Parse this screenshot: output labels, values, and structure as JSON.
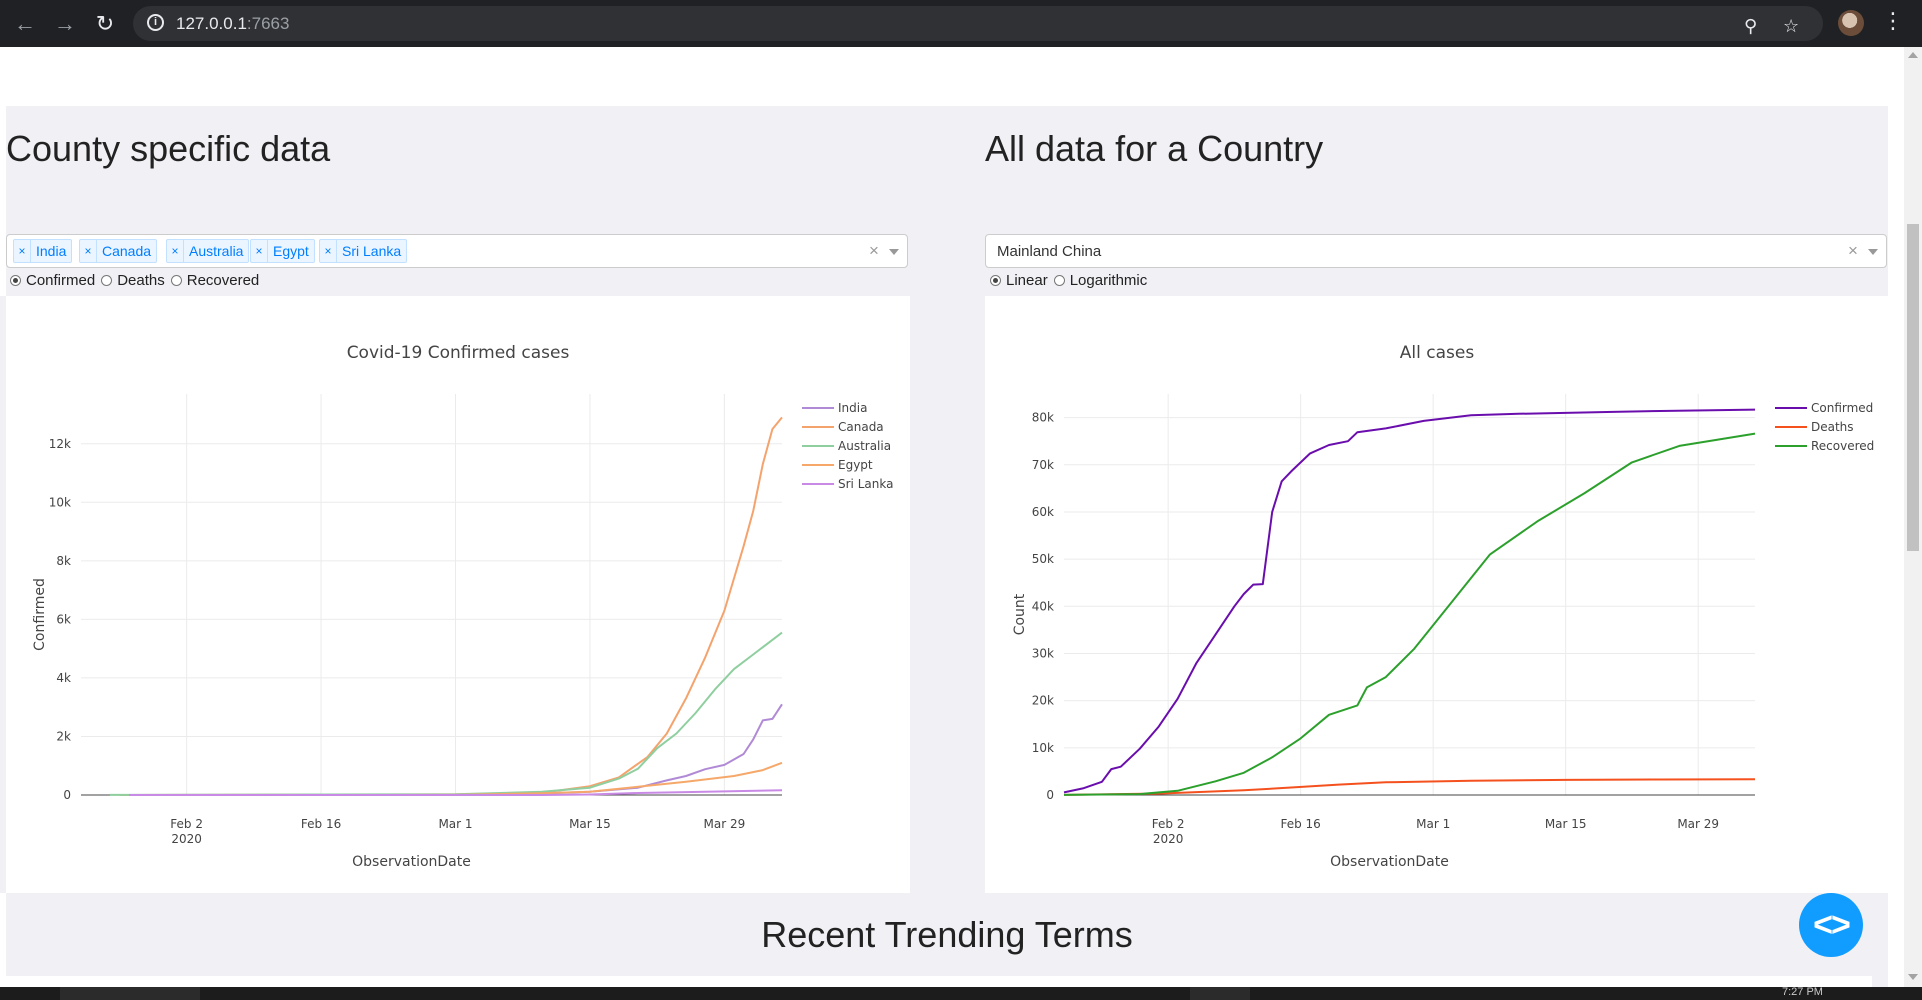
{
  "browser": {
    "url_host": "127.0.0.1",
    "url_port": ":7663",
    "icons": [
      "back-icon",
      "forward-icon",
      "reload-icon",
      "info-icon",
      "zoom-icon",
      "star-icon",
      "avatar",
      "menu-icon"
    ]
  },
  "left_section": {
    "title": "County specific data",
    "selected_countries": [
      "India",
      "Canada",
      "Australia",
      "Egypt",
      "Sri Lanka"
    ],
    "tag_remove_symbol": "×",
    "clear_symbol": "×",
    "radio_options": [
      "Confirmed",
      "Deaths",
      "Recovered"
    ],
    "radio_selected": "Confirmed"
  },
  "right_section": {
    "title": "All data for a Country",
    "selected_country": "Mainland China",
    "clear_symbol": "×",
    "radio_options": [
      "Linear",
      "Logarithmic"
    ],
    "radio_selected": "Linear"
  },
  "bottom": {
    "title": "Recent Trending Terms",
    "fab_symbol": "<>"
  },
  "taskbar": {
    "clock": "7:27 PM"
  },
  "colors": {
    "india": "#b18ad6",
    "canada": "#f4a36d",
    "australia": "#8fcf9f",
    "egypt": "#f5a86a",
    "sri_lanka": "#c98ae6",
    "confirmed": "#6a0dad",
    "deaths": "#f4511e",
    "recovered": "#2ca02c",
    "accent": "#119dff"
  },
  "chart_data": [
    {
      "type": "line",
      "title": "Covid-19 Confirmed cases",
      "xlabel": "ObservationDate",
      "ylabel": "Confirmed",
      "xlim": [
        "2020-01-22",
        "2020-04-04"
      ],
      "ylim": [
        0,
        13700
      ],
      "x_ticks": [
        {
          "date": "2020-02-02",
          "label": "Feb 2",
          "sub": "2020"
        },
        {
          "date": "2020-02-16",
          "label": "Feb 16",
          "sub": ""
        },
        {
          "date": "2020-03-01",
          "label": "Mar 1",
          "sub": ""
        },
        {
          "date": "2020-03-15",
          "label": "Mar 15",
          "sub": ""
        },
        {
          "date": "2020-03-29",
          "label": "Mar 29",
          "sub": ""
        }
      ],
      "y_ticks": [
        0,
        2000,
        4000,
        6000,
        8000,
        10000,
        12000
      ],
      "y_tick_labels": [
        "0",
        "2k",
        "4k",
        "6k",
        "8k",
        "10k",
        "12k"
      ],
      "grid": true,
      "legend": "top-right",
      "series": [
        {
          "name": "India",
          "color": "#b18ad6",
          "x": [
            "2020-01-30",
            "2020-03-01",
            "2020-03-05",
            "2020-03-10",
            "2020-03-15",
            "2020-03-20",
            "2020-03-23",
            "2020-03-25",
            "2020-03-27",
            "2020-03-29",
            "2020-03-31",
            "2020-04-01",
            "2020-04-02",
            "2020-04-03",
            "2020-04-04"
          ],
          "y": [
            1,
            3,
            30,
            50,
            110,
            250,
            500,
            650,
            880,
            1030,
            1400,
            1900,
            2550,
            2600,
            3100
          ]
        },
        {
          "name": "Canada",
          "color": "#f4a36d",
          "x": [
            "2020-01-26",
            "2020-03-01",
            "2020-03-10",
            "2020-03-15",
            "2020-03-18",
            "2020-03-21",
            "2020-03-23",
            "2020-03-25",
            "2020-03-27",
            "2020-03-29",
            "2020-03-31",
            "2020-04-01",
            "2020-04-02",
            "2020-04-03",
            "2020-04-04"
          ],
          "y": [
            1,
            20,
            80,
            300,
            600,
            1300,
            2100,
            3300,
            4700,
            6300,
            8500,
            9700,
            11300,
            12500,
            12900
          ]
        },
        {
          "name": "Australia",
          "color": "#8fcf9f",
          "x": [
            "2020-01-25",
            "2020-03-01",
            "2020-03-10",
            "2020-03-15",
            "2020-03-18",
            "2020-03-20",
            "2020-03-22",
            "2020-03-24",
            "2020-03-26",
            "2020-03-28",
            "2020-03-30",
            "2020-04-01",
            "2020-04-04"
          ],
          "y": [
            4,
            27,
            110,
            250,
            560,
            900,
            1600,
            2100,
            2800,
            3600,
            4300,
            4800,
            5550
          ]
        },
        {
          "name": "Egypt",
          "color": "#f5a86a",
          "x": [
            "2020-02-14",
            "2020-03-01",
            "2020-03-10",
            "2020-03-15",
            "2020-03-20",
            "2020-03-25",
            "2020-03-30",
            "2020-04-02",
            "2020-04-04"
          ],
          "y": [
            1,
            2,
            60,
            110,
            280,
            450,
            650,
            850,
            1100
          ]
        },
        {
          "name": "Sri Lanka",
          "color": "#c98ae6",
          "x": [
            "2020-01-27",
            "2020-03-10",
            "2020-03-15",
            "2020-03-20",
            "2020-03-25",
            "2020-04-04"
          ],
          "y": [
            1,
            1,
            18,
            70,
            100,
            160
          ]
        }
      ]
    },
    {
      "type": "line",
      "title": "All cases",
      "xlabel": "ObservationDate",
      "ylabel": "Count",
      "xlim": [
        "2020-01-22",
        "2020-04-04"
      ],
      "ylim": [
        0,
        85000
      ],
      "x_ticks": [
        {
          "date": "2020-02-02",
          "label": "Feb 2",
          "sub": "2020"
        },
        {
          "date": "2020-02-16",
          "label": "Feb 16",
          "sub": ""
        },
        {
          "date": "2020-03-01",
          "label": "Mar 1",
          "sub": ""
        },
        {
          "date": "2020-03-15",
          "label": "Mar 15",
          "sub": ""
        },
        {
          "date": "2020-03-29",
          "label": "Mar 29",
          "sub": ""
        }
      ],
      "y_ticks": [
        0,
        10000,
        20000,
        30000,
        40000,
        50000,
        60000,
        70000,
        80000
      ],
      "y_tick_labels": [
        "0",
        "10k",
        "20k",
        "30k",
        "40k",
        "50k",
        "60k",
        "70k",
        "80k"
      ],
      "grid": true,
      "legend": "top-right",
      "series": [
        {
          "name": "Confirmed",
          "color": "#6a0dad",
          "x": [
            "2020-01-22",
            "2020-01-24",
            "2020-01-26",
            "2020-01-27",
            "2020-01-28",
            "2020-01-30",
            "2020-02-01",
            "2020-02-03",
            "2020-02-05",
            "2020-02-07",
            "2020-02-09",
            "2020-02-10",
            "2020-02-11",
            "2020-02-12",
            "2020-02-13",
            "2020-02-14",
            "2020-02-15",
            "2020-02-17",
            "2020-02-19",
            "2020-02-21",
            "2020-02-22",
            "2020-02-25",
            "2020-02-29",
            "2020-03-05",
            "2020-03-10",
            "2020-03-15",
            "2020-03-20",
            "2020-03-25",
            "2020-04-04"
          ],
          "y": [
            550,
            1400,
            2800,
            5500,
            6000,
            9800,
            14500,
            20400,
            28000,
            34000,
            40000,
            42600,
            44600,
            44700,
            60000,
            66500,
            68600,
            72400,
            74200,
            75000,
            76900,
            77700,
            79300,
            80500,
            80800,
            81000,
            81200,
            81400,
            81700
          ]
        },
        {
          "name": "Deaths",
          "color": "#f4511e",
          "x": [
            "2020-01-22",
            "2020-02-01",
            "2020-02-10",
            "2020-02-15",
            "2020-02-20",
            "2020-02-25",
            "2020-03-05",
            "2020-03-15",
            "2020-03-25",
            "2020-04-04"
          ],
          "y": [
            17,
            300,
            1000,
            1600,
            2200,
            2700,
            3000,
            3200,
            3280,
            3320
          ]
        },
        {
          "name": "Recovered",
          "color": "#2ca02c",
          "x": [
            "2020-01-22",
            "2020-01-30",
            "2020-02-03",
            "2020-02-07",
            "2020-02-10",
            "2020-02-13",
            "2020-02-16",
            "2020-02-19",
            "2020-02-22",
            "2020-02-23",
            "2020-02-25",
            "2020-02-28",
            "2020-03-03",
            "2020-03-07",
            "2020-03-12",
            "2020-03-17",
            "2020-03-22",
            "2020-03-27",
            "2020-04-04"
          ],
          "y": [
            30,
            200,
            900,
            2900,
            4700,
            8000,
            12000,
            17000,
            19000,
            22800,
            25000,
            31000,
            41000,
            51000,
            58000,
            64000,
            70500,
            74000,
            76600
          ]
        }
      ]
    }
  ]
}
